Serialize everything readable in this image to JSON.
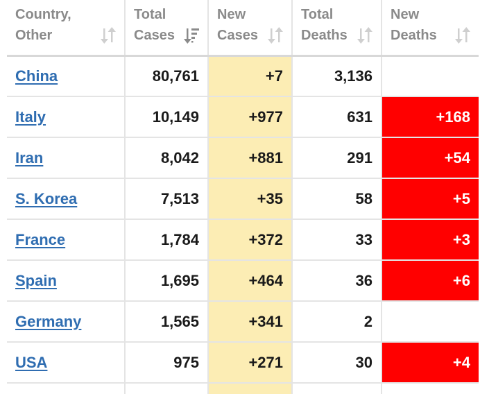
{
  "colors": {
    "new_cases_bg": "#fcedb4",
    "new_deaths_bg": "#ff0000",
    "link": "#2f6db1",
    "header_text": "#8a8a8a"
  },
  "headers": [
    {
      "line1": "Country,",
      "line2": "Other",
      "sort_icon": "sort-arrows-icon"
    },
    {
      "line1": "Total",
      "line2": "Cases",
      "sort_icon": "sort-descending-icon"
    },
    {
      "line1": "New",
      "line2": "Cases",
      "sort_icon": "sort-arrows-icon"
    },
    {
      "line1": "Total",
      "line2": "Deaths",
      "sort_icon": "sort-arrows-icon"
    },
    {
      "line1": "New",
      "line2": "Deaths",
      "sort_icon": "sort-arrows-icon"
    }
  ],
  "rows": [
    {
      "country": "China",
      "total_cases": "80,761",
      "new_cases": "+7",
      "total_deaths": "3,136",
      "new_deaths": ""
    },
    {
      "country": "Italy",
      "total_cases": "10,149",
      "new_cases": "+977",
      "total_deaths": "631",
      "new_deaths": "+168"
    },
    {
      "country": "Iran",
      "total_cases": "8,042",
      "new_cases": "+881",
      "total_deaths": "291",
      "new_deaths": "+54"
    },
    {
      "country": "S. Korea",
      "total_cases": "7,513",
      "new_cases": "+35",
      "total_deaths": "58",
      "new_deaths": "+5"
    },
    {
      "country": "France",
      "total_cases": "1,784",
      "new_cases": "+372",
      "total_deaths": "33",
      "new_deaths": "+3"
    },
    {
      "country": "Spain",
      "total_cases": "1,695",
      "new_cases": "+464",
      "total_deaths": "36",
      "new_deaths": "+6"
    },
    {
      "country": "Germany",
      "total_cases": "1,565",
      "new_cases": "+341",
      "total_deaths": "2",
      "new_deaths": ""
    },
    {
      "country": "USA",
      "total_cases": "975",
      "new_cases": "+271",
      "total_deaths": "30",
      "new_deaths": "+4"
    }
  ]
}
